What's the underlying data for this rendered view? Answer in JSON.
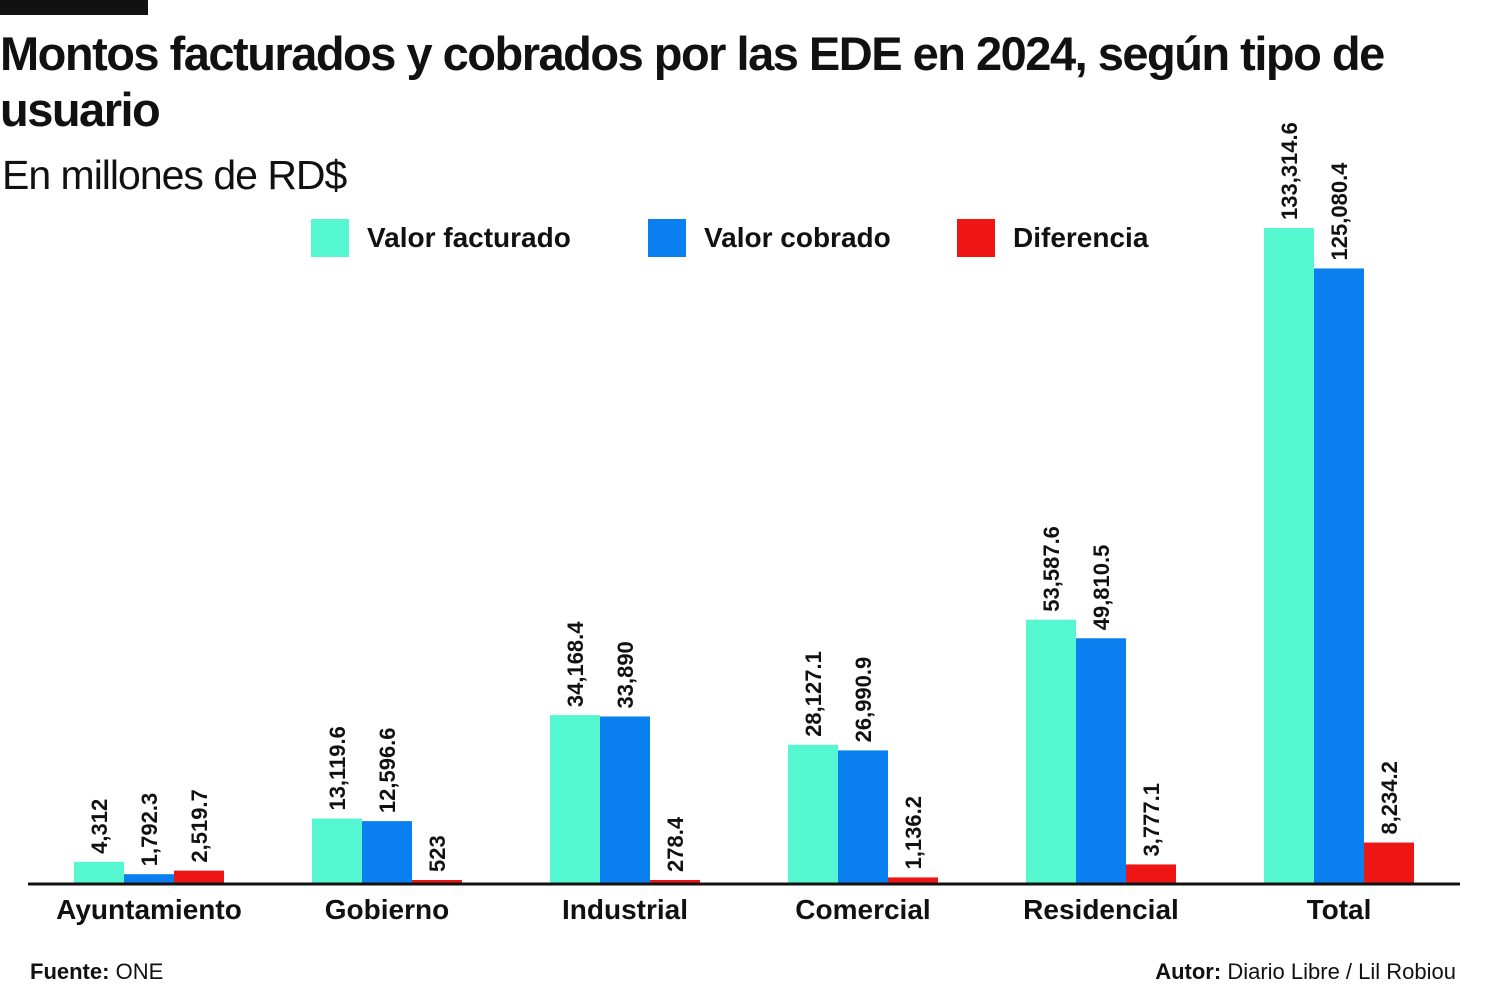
{
  "header": {
    "title": "Montos facturados y cobrados por las EDE en 2024, según tipo de usuario",
    "subtitle": "En millones de RD$"
  },
  "footer": {
    "source_label": "Fuente:",
    "source_value": "ONE",
    "author_label": "Autor:",
    "author_value": "Diario Libre / Lil Robiou"
  },
  "colors": {
    "facturado": "#55f7d1",
    "cobrado": "#0a80f0",
    "diferencia": "#ee1515",
    "axis": "#111111"
  },
  "chart_data": {
    "type": "bar",
    "title": "Montos facturados y cobrados por las EDE en 2024, según tipo de usuario",
    "subtitle": "En millones de RD$",
    "xlabel": "",
    "ylabel": "",
    "ylim": [
      0,
      150000
    ],
    "grid": false,
    "legend_position": "top",
    "categories": [
      "Ayuntamiento",
      "Gobierno",
      "Industrial",
      "Comercial",
      "Residencial",
      "Total"
    ],
    "series": [
      {
        "name": "Valor facturado",
        "color_key": "facturado",
        "values": [
          4312,
          13119.6,
          34168.4,
          28127.1,
          53587.6,
          133314.6
        ],
        "labels": [
          "4,312",
          "13,119.6",
          "34,168.4",
          "28,127.1",
          "53,587.6",
          "133,314.6"
        ]
      },
      {
        "name": "Valor cobrado",
        "color_key": "cobrado",
        "values": [
          1792.3,
          12596.6,
          33890,
          26990.9,
          49810.5,
          125080.4
        ],
        "labels": [
          "1,792.3",
          "12,596.6",
          "33,890",
          "26,990.9",
          "49,810.5",
          "125,080.4"
        ]
      },
      {
        "name": "Diferencia",
        "color_key": "diferencia",
        "values": [
          2519.7,
          523,
          278.4,
          1136.2,
          3777.1,
          8234.2
        ],
        "labels": [
          "2,519.7",
          "523",
          "278.4",
          "1,136.2",
          "3,777.1",
          "8,234.2"
        ]
      }
    ]
  }
}
